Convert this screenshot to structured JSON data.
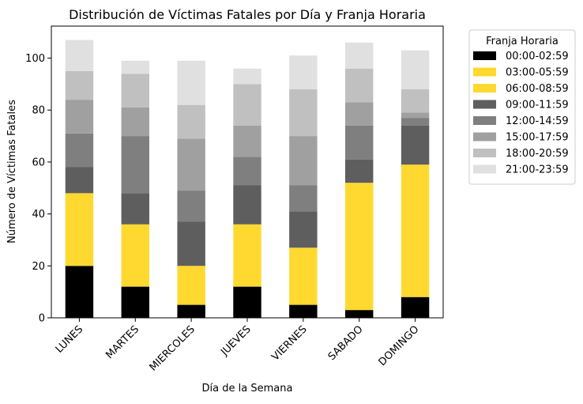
{
  "chart_data": {
    "type": "bar",
    "stacked": true,
    "title": "Distribución de Víctimas Fatales por Día y Franja Horaria",
    "xlabel": "Día de la Semana",
    "ylabel": "Número de Víctimas Fatales",
    "ylim": [
      0,
      112.35
    ],
    "yticks": [
      0,
      20,
      40,
      60,
      80,
      100
    ],
    "grid": false,
    "legend_title": "Franja Horaria",
    "legend_position": "outside-upper-right",
    "categories": [
      "LUNES",
      "MARTES",
      "MIERCOLES",
      "JUEVES",
      "VIERNES",
      "SABADO",
      "DOMINGO"
    ],
    "series": [
      {
        "name": "00:00-02:59",
        "color": "#000000",
        "values": [
          20,
          12,
          5,
          12,
          5,
          3,
          8
        ]
      },
      {
        "name": "03:00-05:59",
        "color": "#FFD92F",
        "values": [
          28,
          24,
          15,
          24,
          22,
          49,
          51
        ]
      },
      {
        "name": "06:00-08:59",
        "color": "#FFD92F",
        "values": [
          0,
          0,
          0,
          0,
          0,
          0,
          0
        ]
      },
      {
        "name": "09:00-11:59",
        "color": "#5E5E5E",
        "values": [
          10,
          12,
          17,
          15,
          14,
          9,
          15
        ]
      },
      {
        "name": "12:00-14:59",
        "color": "#7F7F7F",
        "values": [
          13,
          22,
          12,
          11,
          10,
          13,
          3
        ]
      },
      {
        "name": "15:00-17:59",
        "color": "#A0A0A0",
        "values": [
          13,
          11,
          20,
          12,
          19,
          9,
          2
        ]
      },
      {
        "name": "18:00-20:59",
        "color": "#C0C0C0",
        "values": [
          11,
          13,
          13,
          16,
          18,
          13,
          9
        ]
      },
      {
        "name": "21:00-23:59",
        "color": "#E0E0E0",
        "values": [
          12,
          5,
          17,
          6,
          13,
          10,
          15
        ]
      }
    ]
  }
}
